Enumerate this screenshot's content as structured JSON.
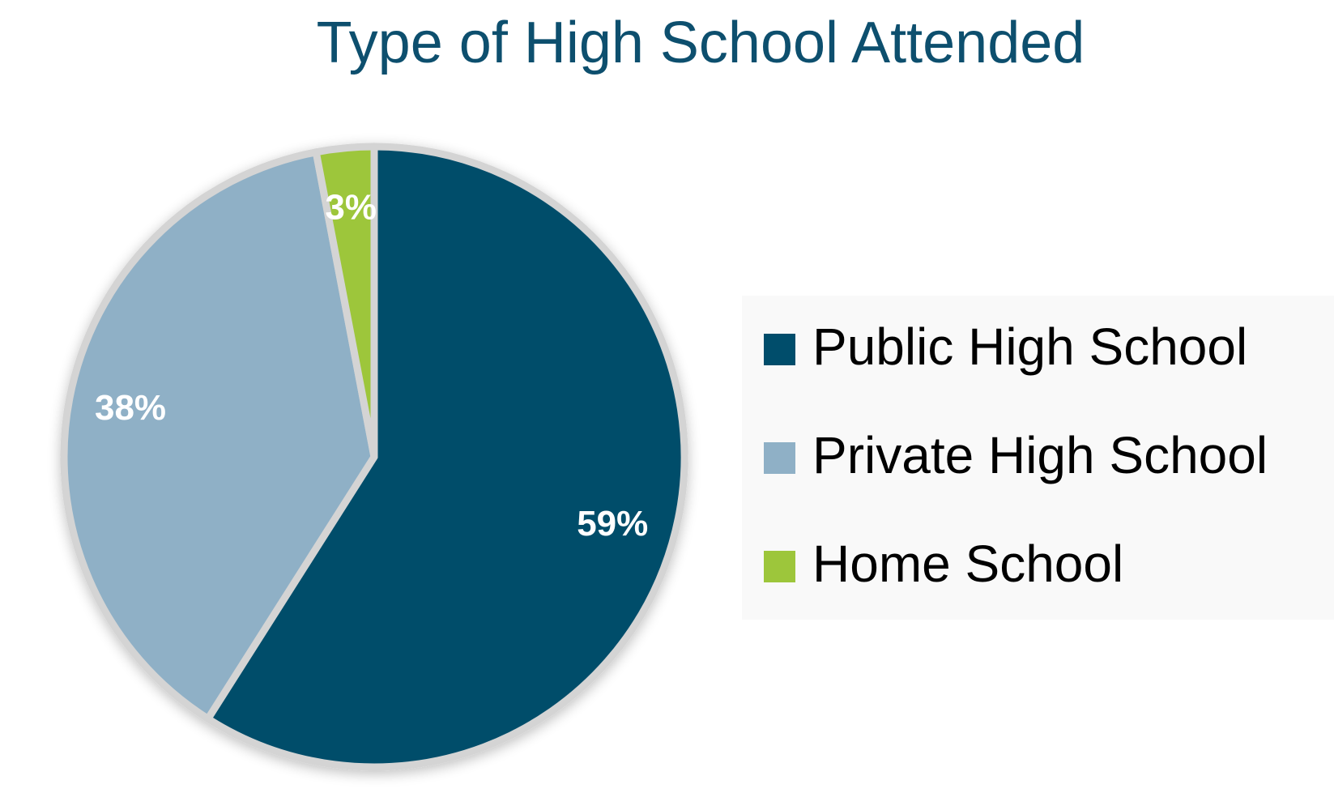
{
  "chart_data": {
    "type": "pie",
    "title": "Type of High School Attended",
    "categories": [
      "Public High School",
      "Private High School",
      "Home School"
    ],
    "values": [
      59,
      38,
      3
    ],
    "value_labels": [
      "59%",
      "38%",
      "3%"
    ],
    "colors": [
      "#004d6b",
      "#8fb0c6",
      "#9dc63b"
    ],
    "legend": "right"
  }
}
